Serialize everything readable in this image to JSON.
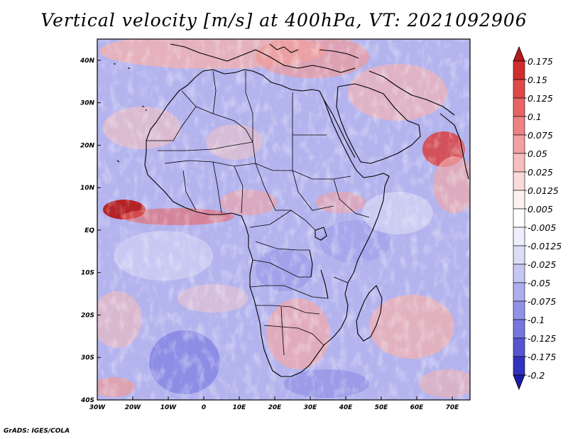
{
  "title": "Vertical velocity [m/s] at 400hPa, VT: 2021092906",
  "footer": "GrADS: IGES/COLA",
  "map": {
    "region": "Africa",
    "lon_range": [
      -30,
      75
    ],
    "lat_range": [
      -40,
      45
    ],
    "x_ticks": [
      "30W",
      "20W",
      "10W",
      "0",
      "10E",
      "20E",
      "30E",
      "40E",
      "50E",
      "60E",
      "70E"
    ],
    "y_ticks": [
      "40N",
      "30N",
      "20N",
      "10N",
      "EQ",
      "10S",
      "20S",
      "30S",
      "40S"
    ],
    "x_tick_values": [
      -30,
      -20,
      -10,
      0,
      10,
      20,
      30,
      40,
      50,
      60,
      70
    ],
    "y_tick_values": [
      40,
      30,
      20,
      10,
      0,
      -10,
      -20,
      -30,
      -40
    ]
  },
  "colorbar": {
    "labels": [
      "0.175",
      "0.15",
      "0.125",
      "0.1",
      "0.075",
      "0.05",
      "0.025",
      "0.0125",
      "0.005",
      "-0.005",
      "-0.0125",
      "-0.025",
      "-0.05",
      "-0.075",
      "-0.1",
      "-0.125",
      "-0.175",
      "-0.2"
    ],
    "colors": [
      "#b51a1a",
      "#d22d2d",
      "#e04848",
      "#e86464",
      "#ee8282",
      "#f3a0a0",
      "#f7bebe",
      "#fadada",
      "#fdf0f0",
      "#ffffff",
      "#eeeefc",
      "#dcdcf8",
      "#c6c6f3",
      "#aeaeee",
      "#9292e8",
      "#7676df",
      "#5656d2",
      "#3232c0",
      "#1c1ca8"
    ]
  }
}
